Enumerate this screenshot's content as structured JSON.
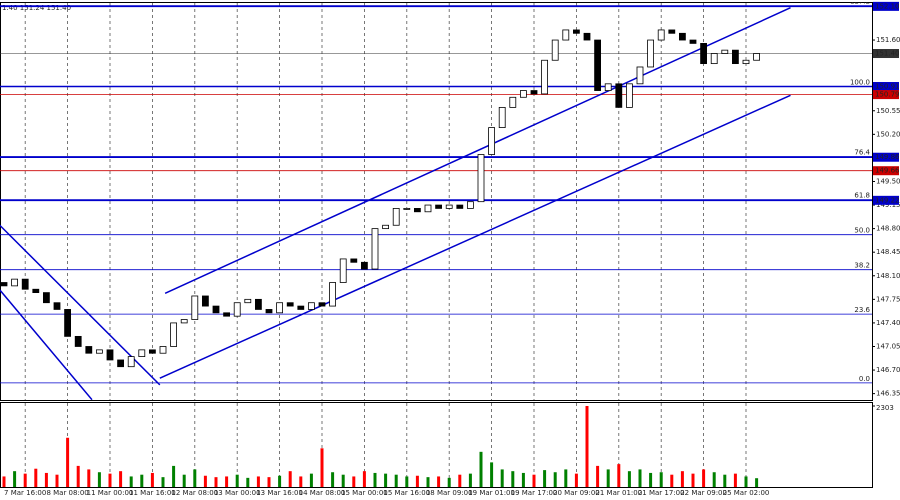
{
  "chart_data": {
    "type": "candlestick",
    "quote_text": "1.40 151.24 151.40",
    "categories": [
      null,
      null,
      "7 Mar 16:00",
      null,
      null,
      null,
      "8 Mar 08:00",
      null,
      null,
      null,
      "11 Mar 00:00",
      null,
      null,
      null,
      "11 Mar 16:00",
      null,
      null,
      null,
      "12 Mar 08:00",
      null,
      null,
      null,
      "13 Mar 00:00",
      null,
      null,
      null,
      "13 Mar 16:00",
      null,
      null,
      null,
      "14 Mar 08:00",
      null,
      null,
      null,
      "15 Mar 00:00",
      null,
      null,
      null,
      "15 Mar 16:00",
      null,
      null,
      null,
      "18 Mar 09:00",
      null,
      null,
      null,
      "19 Mar 01:00",
      null,
      null,
      null,
      "19 Mar 17:00",
      null,
      null,
      null,
      "20 Mar 09:00",
      null,
      null,
      null,
      "21 Mar 01:00",
      null,
      null,
      null,
      "21 Mar 17:00",
      null,
      null,
      null,
      "22 Mar 09:00",
      null,
      null,
      null,
      "25 Mar 02:00",
      null
    ],
    "open": [
      148.0,
      147.95,
      148.05,
      147.9,
      147.85,
      147.7,
      147.6,
      147.2,
      147.05,
      146.95,
      147.0,
      146.85,
      146.75,
      146.9,
      147.0,
      146.95,
      147.05,
      147.4,
      147.45,
      147.8,
      147.65,
      147.55,
      147.5,
      147.7,
      147.75,
      147.6,
      147.55,
      147.7,
      147.65,
      147.6,
      147.7,
      147.65,
      148.0,
      148.35,
      148.3,
      148.2,
      148.8,
      148.85,
      149.1,
      149.1,
      149.05,
      149.15,
      149.1,
      149.15,
      149.1,
      149.2,
      149.9,
      150.3,
      150.6,
      150.75,
      150.85,
      150.8,
      151.3,
      151.6,
      151.75,
      151.7,
      151.6,
      150.85,
      150.95,
      150.6,
      150.95,
      151.2,
      151.6,
      151.75,
      151.7,
      151.6,
      151.55,
      151.25,
      151.4,
      151.45,
      151.25,
      151.3
    ],
    "close": [
      147.95,
      148.05,
      147.9,
      147.85,
      147.7,
      147.6,
      147.2,
      147.05,
      146.95,
      147.0,
      146.85,
      146.75,
      146.9,
      147.0,
      146.95,
      147.05,
      147.4,
      147.45,
      147.8,
      147.65,
      147.55,
      147.5,
      147.7,
      147.75,
      147.6,
      147.55,
      147.7,
      147.65,
      147.6,
      147.7,
      147.65,
      148.0,
      148.35,
      148.3,
      148.2,
      148.8,
      148.85,
      149.1,
      149.1,
      149.05,
      149.15,
      149.1,
      149.15,
      149.1,
      149.2,
      149.9,
      150.3,
      150.6,
      150.75,
      150.85,
      150.8,
      151.3,
      151.6,
      151.75,
      151.7,
      151.6,
      150.85,
      150.95,
      150.6,
      150.95,
      151.2,
      151.6,
      151.75,
      151.7,
      151.6,
      151.55,
      151.25,
      151.4,
      151.45,
      151.25,
      151.3,
      151.4
    ],
    "up_color": "#008000",
    "down_color": "#ff0000",
    "candle_color": "#000000",
    "ylim": [
      146.3,
      152.15
    ],
    "yticks": [
      {
        "value": 151.6,
        "label": "151.60"
      },
      {
        "value": 150.55,
        "label": "150.55"
      },
      {
        "value": 150.2,
        "label": "150.20"
      },
      {
        "value": 149.5,
        "label": "149.50"
      },
      {
        "value": 149.15,
        "label": "149.15"
      },
      {
        "value": 148.8,
        "label": "148.80"
      },
      {
        "value": 148.45,
        "label": "148.45"
      },
      {
        "value": 148.1,
        "label": "148.10"
      },
      {
        "value": 147.75,
        "label": "147.75"
      },
      {
        "value": 147.4,
        "label": "147.40"
      },
      {
        "value": 147.05,
        "label": "147.05"
      },
      {
        "value": 146.7,
        "label": "146.70"
      },
      {
        "value": 146.35,
        "label": "146.35"
      }
    ],
    "grid": "vertical",
    "levels": [
      {
        "value": 152.1,
        "label": "152.10",
        "color": "#0000cc",
        "width": 1.5
      },
      {
        "value": 151.4,
        "label": "151.40",
        "color": "#333333",
        "width": 0.5
      },
      {
        "value": 150.91,
        "label": "150.91",
        "color": "#0000cc",
        "width": 1.5
      },
      {
        "value": 150.79,
        "label": "150.79",
        "color": "#cc0000",
        "width": 0.8
      },
      {
        "value": 149.86,
        "label": "149.86",
        "color": "#0000cc",
        "width": 1.5
      },
      {
        "value": 149.66,
        "label": "149.66",
        "color": "#cc0000",
        "width": 0.8
      },
      {
        "value": 149.22,
        "label": "149.22",
        "color": "#0000cc",
        "width": 1.5
      }
    ],
    "fib_levels": [
      {
        "value": 146.51,
        "label": "0.0"
      },
      {
        "value": 147.53,
        "label": "23.6"
      },
      {
        "value": 148.19,
        "label": "38.2"
      },
      {
        "value": 148.71,
        "label": "50.0"
      },
      {
        "value": 149.23,
        "label": "61.8"
      },
      {
        "value": 149.87,
        "label": "76.4"
      },
      {
        "value": 150.91,
        "label": "100.0"
      },
      {
        "value": 152.11,
        "label": "127.2"
      }
    ],
    "fib_color": "#0000cc",
    "trendlines": [
      {
        "x": [
          15.2,
          74.2
        ],
        "y": [
          147.84,
          152.08
        ]
      },
      {
        "x": [
          14.7,
          74.2
        ],
        "y": [
          146.58,
          150.78
        ]
      },
      {
        "x": [
          -0.4,
          14.7
        ],
        "y": [
          148.85,
          146.48
        ]
      },
      {
        "x": [
          -0.4,
          8.3
        ],
        "y": [
          147.89,
          146.26
        ]
      }
    ],
    "trend_color": "#0000cc",
    "volume": {
      "values": [
        300,
        450,
        380,
        520,
        400,
        350,
        1400,
        600,
        500,
        420,
        380,
        450,
        300,
        350,
        400,
        280,
        600,
        350,
        500,
        320,
        280,
        300,
        350,
        260,
        300,
        280,
        320,
        450,
        300,
        380,
        1100,
        420,
        350,
        300,
        450,
        400,
        380,
        350,
        300,
        320,
        280,
        300,
        260,
        350,
        380,
        1000,
        700,
        500,
        450,
        400,
        350,
        480,
        420,
        500,
        380,
        2303,
        600,
        500,
        650,
        450,
        500,
        400,
        420,
        350,
        450,
        380,
        500,
        420,
        350,
        380,
        300,
        250
      ],
      "ylim": [
        0,
        2303
      ],
      "yticks": [
        2303
      ]
    }
  }
}
